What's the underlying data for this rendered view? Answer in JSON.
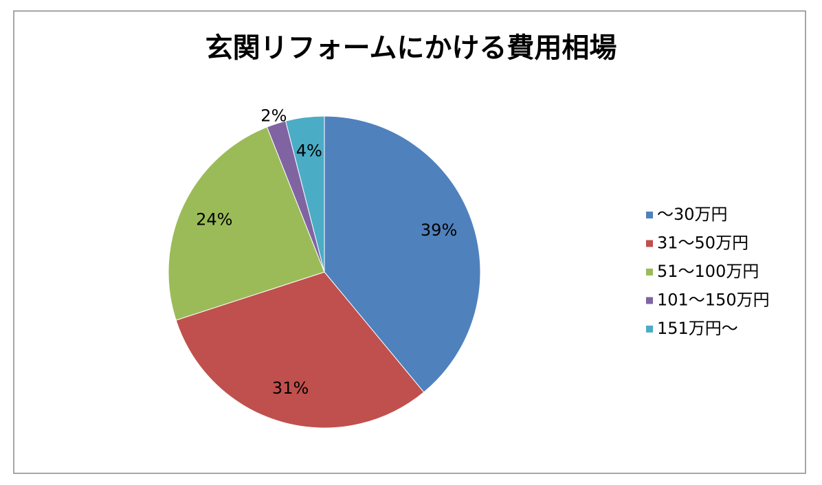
{
  "chart_data": {
    "type": "pie",
    "title": "玄関リフォームにかける費用相場",
    "categories": [
      "～30万円",
      "31～50万円",
      "51～100万円",
      "101～150万円",
      "151万円～"
    ],
    "values": [
      39,
      31,
      24,
      2,
      4
    ],
    "value_labels": [
      "39%",
      "31%",
      "24%",
      "2%",
      "4%"
    ],
    "colors": [
      "#4f81bd",
      "#c0504d",
      "#9bbb59",
      "#8064a2",
      "#4bacc6"
    ],
    "legend": "right"
  }
}
